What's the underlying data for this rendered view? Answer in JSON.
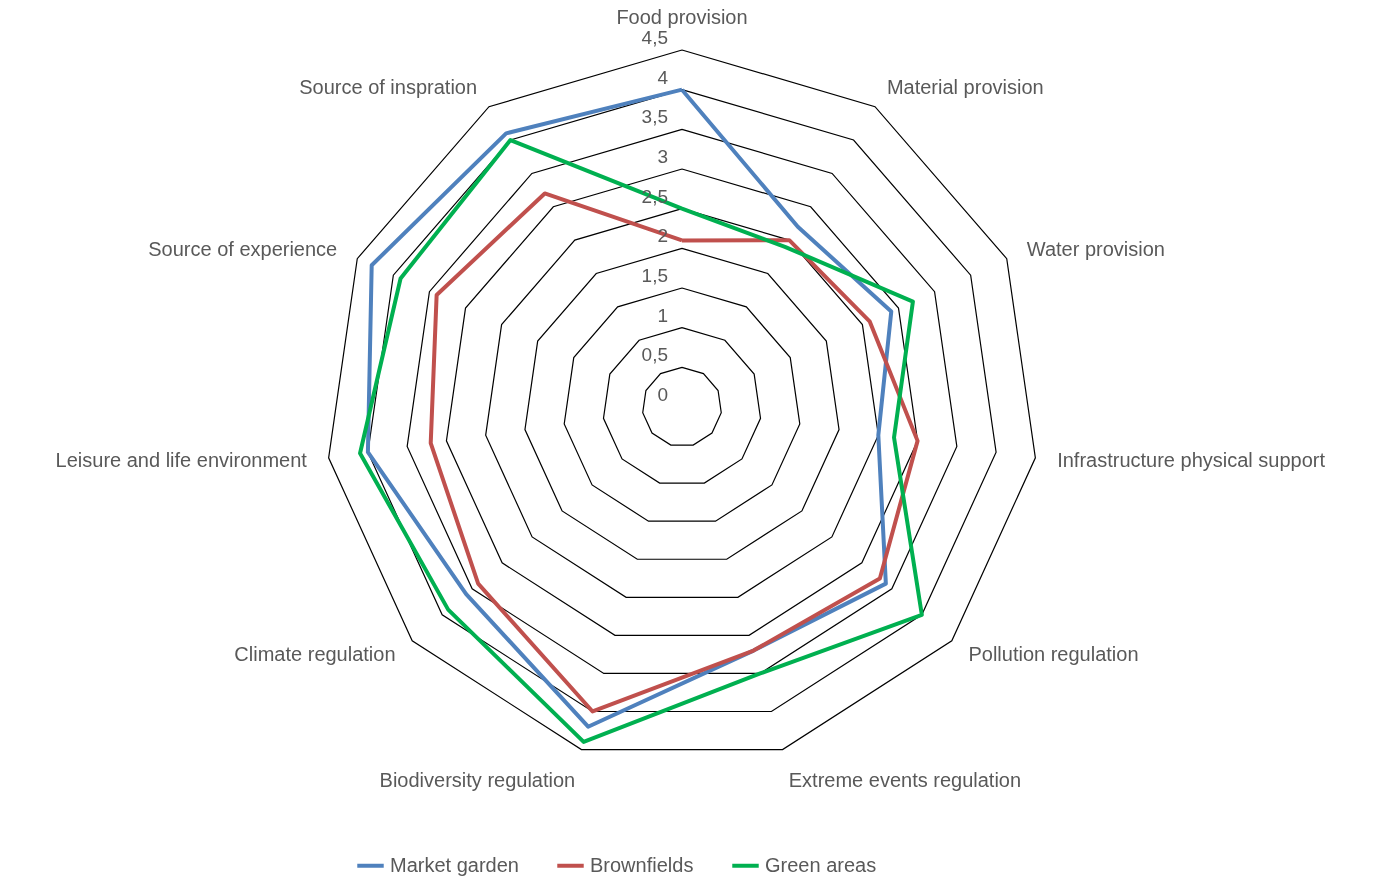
{
  "chart_data": {
    "type": "radar",
    "categories": [
      "Food provision",
      "Material provision",
      "Water provision",
      "Infrastructure physical support",
      "Pollution regulation",
      "Extreme events regulation",
      "Biodiversity regulation",
      "Climate regulation",
      "Leisure and life environment",
      "Source of experience",
      "Source of inspration"
    ],
    "series": [
      {
        "name": "Market garden",
        "color": "#4f81bd",
        "values": [
          4.0,
          2.7,
          2.9,
          2.5,
          3.4,
          3.2,
          4.2,
          3.6,
          4.0,
          4.3,
          4.1
        ]
      },
      {
        "name": "Brownfields",
        "color": "#c0504d",
        "values": [
          2.1,
          2.5,
          2.6,
          3.0,
          3.3,
          3.2,
          4.0,
          3.4,
          3.2,
          3.4,
          3.2
        ]
      },
      {
        "name": "Green areas",
        "color": "#00b050",
        "values": [
          2.5,
          2.4,
          3.2,
          2.7,
          4.0,
          3.5,
          4.4,
          3.9,
          4.1,
          3.9,
          4.0
        ]
      }
    ],
    "ylim": [
      0,
      4.5
    ],
    "yticks": [
      {
        "value": 0,
        "label": "0"
      },
      {
        "value": 0.5,
        "label": "0,5"
      },
      {
        "value": 1,
        "label": "1"
      },
      {
        "value": 1.5,
        "label": "1,5"
      },
      {
        "value": 2,
        "label": "2"
      },
      {
        "value": 2.5,
        "label": "2,5"
      },
      {
        "value": 3,
        "label": "3"
      },
      {
        "value": 3.5,
        "label": "3,5"
      },
      {
        "value": 4,
        "label": "4"
      },
      {
        "value": 4.5,
        "label": "4,5"
      }
    ],
    "grid": true,
    "legend": "bottom",
    "line_style": "solid"
  }
}
